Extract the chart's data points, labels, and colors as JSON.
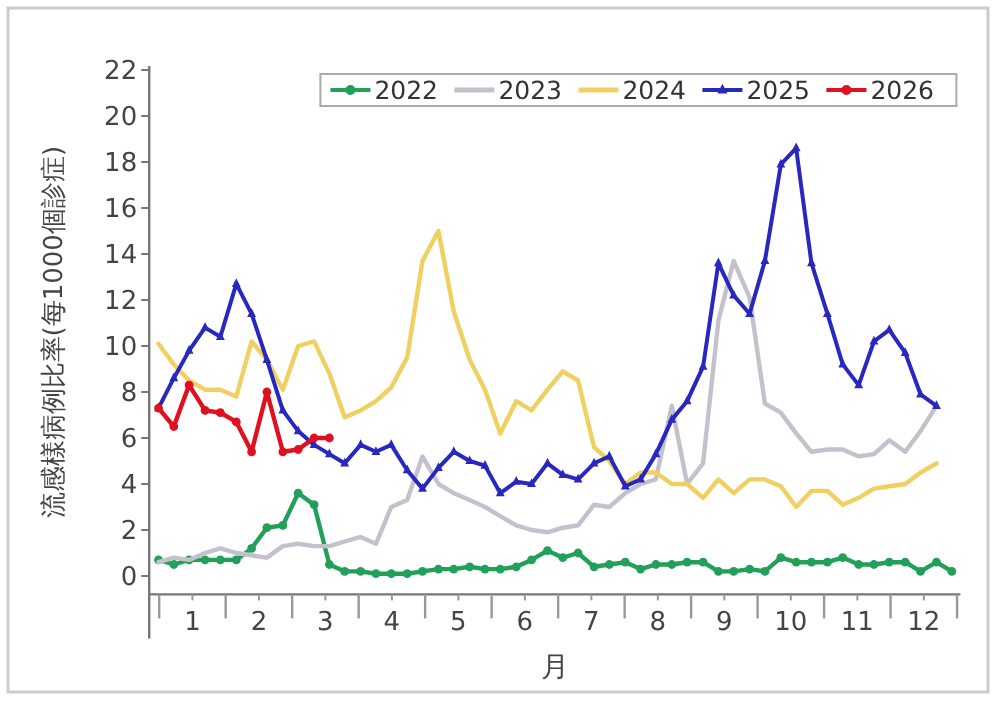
{
  "chart_data": {
    "type": "line",
    "xlabel": "月",
    "ylabel": "流感樣病例比率(每1000個診症)",
    "legend": "top right",
    "grid": false,
    "xlim": [
      0.35,
      12.55
    ],
    "ylim": [
      -0.8,
      22
    ],
    "yticks": [
      0,
      2,
      4,
      6,
      8,
      10,
      12,
      14,
      16,
      18,
      20,
      22
    ],
    "xticks": [
      {
        "value": 0.5,
        "label": null
      },
      1,
      {
        "value": 1.5,
        "label": null
      },
      2,
      {
        "value": 2.5,
        "label": null
      },
      3,
      {
        "value": 3.5,
        "label": null
      },
      4,
      {
        "value": 4.5,
        "label": null
      },
      5,
      {
        "value": 5.5,
        "label": null
      },
      6,
      {
        "value": 6.5,
        "label": null
      },
      7,
      {
        "value": 7.5,
        "label": null
      },
      8,
      {
        "value": 8.5,
        "label": null
      },
      9,
      {
        "value": 9.5,
        "label": null
      },
      10,
      {
        "value": 10.5,
        "label": null
      },
      11,
      {
        "value": 11.5,
        "label": null
      },
      12,
      {
        "value": 12.5,
        "label": null
      }
    ],
    "x": [
      0.49,
      0.72,
      0.95,
      1.19,
      1.42,
      1.66,
      1.89,
      2.12,
      2.36,
      2.59,
      2.83,
      3.06,
      3.29,
      3.53,
      3.76,
      3.99,
      4.23,
      4.46,
      4.7,
      4.93,
      5.17,
      5.4,
      5.63,
      5.87,
      6.1,
      6.34,
      6.57,
      6.8,
      7.04,
      7.27,
      7.51,
      7.74,
      7.97,
      8.21,
      8.44,
      8.68,
      8.91,
      9.14,
      9.38,
      9.61,
      9.85,
      10.08,
      10.31,
      10.55,
      10.78,
      11.02,
      11.25,
      11.48,
      11.72,
      11.95,
      12.19,
      12.42
    ],
    "series": [
      {
        "name": "2022",
        "color": "#22a05a",
        "marker": "circle",
        "values": [
          0.7,
          0.5,
          0.7,
          0.7,
          0.7,
          0.7,
          1.2,
          2.1,
          2.2,
          3.6,
          3.1,
          0.5,
          0.2,
          0.2,
          0.1,
          0.1,
          0.1,
          0.2,
          0.3,
          0.3,
          0.4,
          0.3,
          0.3,
          0.4,
          0.7,
          1.1,
          0.8,
          1.0,
          0.4,
          0.5,
          0.6,
          0.3,
          0.5,
          0.5,
          0.6,
          0.6,
          0.2,
          0.2,
          0.3,
          0.2,
          0.8,
          0.6,
          0.6,
          0.6,
          0.8,
          0.5,
          0.5,
          0.6,
          0.6,
          0.2,
          0.6,
          0.2
        ]
      },
      {
        "name": "2023",
        "color": "#c4c0cc",
        "marker": "none",
        "values": [
          0.6,
          0.8,
          0.7,
          1.0,
          1.2,
          1.0,
          0.9,
          0.8,
          1.3,
          1.4,
          1.3,
          1.3,
          1.5,
          1.7,
          1.4,
          3.0,
          3.3,
          5.2,
          4.0,
          3.6,
          3.3,
          3.0,
          2.6,
          2.2,
          2.0,
          1.9,
          2.1,
          2.2,
          3.1,
          3.0,
          3.6,
          4.0,
          4.2,
          7.4,
          4.0,
          4.9,
          11.1,
          13.7,
          12.1,
          7.5,
          7.1,
          6.2,
          5.4,
          5.5,
          5.5,
          5.2,
          5.3,
          5.9,
          5.4,
          6.3,
          7.4,
          null
        ]
      },
      {
        "name": "2024",
        "color": "#f0d060",
        "marker": "none",
        "values": [
          10.1,
          9.2,
          8.5,
          8.1,
          8.1,
          7.8,
          10.2,
          9.4,
          8.1,
          10.0,
          10.2,
          8.8,
          6.9,
          7.2,
          7.6,
          8.2,
          9.5,
          13.7,
          15.0,
          11.5,
          9.4,
          8.1,
          6.2,
          7.6,
          7.2,
          8.1,
          8.9,
          8.5,
          5.6,
          5.0,
          4.0,
          4.5,
          4.5,
          4.0,
          4.0,
          3.4,
          4.2,
          3.6,
          4.2,
          4.2,
          3.9,
          3.0,
          3.7,
          3.7,
          3.1,
          3.4,
          3.8,
          3.9,
          4.0,
          4.5,
          4.9,
          null
        ]
      },
      {
        "name": "2025",
        "color": "#2828c0",
        "marker": "triangle",
        "values": [
          7.3,
          8.6,
          9.8,
          10.8,
          10.4,
          12.7,
          11.4,
          9.4,
          7.2,
          6.3,
          5.7,
          5.3,
          4.9,
          5.7,
          5.4,
          5.7,
          4.6,
          3.8,
          4.7,
          5.4,
          5.0,
          4.8,
          3.6,
          4.1,
          4.0,
          4.9,
          4.4,
          4.2,
          4.9,
          5.2,
          3.9,
          4.2,
          5.3,
          6.8,
          7.6,
          9.1,
          13.6,
          12.2,
          11.4,
          13.7,
          17.9,
          18.6,
          13.6,
          11.4,
          9.2,
          8.3,
          10.2,
          10.7,
          9.7,
          7.9,
          7.4,
          null
        ]
      },
      {
        "name": "2026",
        "color": "#e01020",
        "marker": "circle",
        "values": [
          7.3,
          6.5,
          8.3,
          7.2,
          7.1,
          6.7,
          5.4,
          8.0,
          5.4,
          5.5,
          6.0,
          6.0,
          null,
          null,
          null,
          null,
          null,
          null,
          null,
          null,
          null,
          null,
          null,
          null,
          null,
          null,
          null,
          null,
          null,
          null,
          null,
          null,
          null,
          null,
          null,
          null,
          null,
          null,
          null,
          null,
          null,
          null,
          null,
          null,
          null,
          null,
          null,
          null,
          null,
          null,
          null,
          null
        ]
      }
    ]
  }
}
